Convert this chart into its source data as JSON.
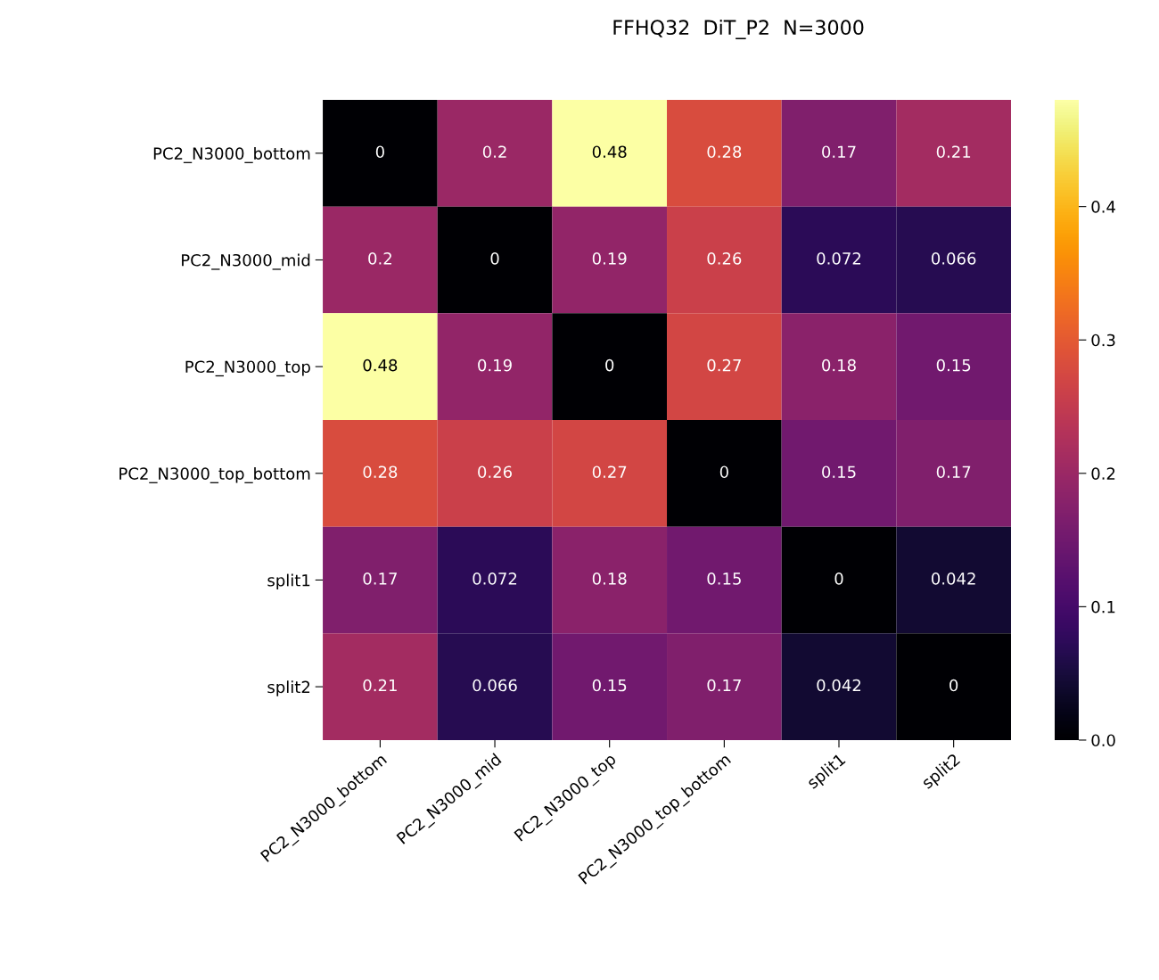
{
  "chart_data": {
    "type": "heatmap",
    "title": "FFHQ32  DiT_P2  N=3000",
    "categories": [
      "PC2_N3000_bottom",
      "PC2_N3000_mid",
      "PC2_N3000_top",
      "PC2_N3000_top_bottom",
      "split1",
      "split2"
    ],
    "y_categories": [
      "PC2_N3000_bottom",
      "PC2_N3000_mid",
      "PC2_N3000_top",
      "PC2_N3000_top_bottom",
      "split1",
      "split2"
    ],
    "cells": [
      [
        0,
        0.2,
        0.48,
        0.28,
        0.17,
        0.21
      ],
      [
        0.2,
        0,
        0.19,
        0.26,
        0.072,
        0.066
      ],
      [
        0.48,
        0.19,
        0,
        0.27,
        0.18,
        0.15
      ],
      [
        0.28,
        0.26,
        0.27,
        0,
        0.15,
        0.17
      ],
      [
        0.17,
        0.072,
        0.18,
        0.15,
        0,
        0.042
      ],
      [
        0.21,
        0.066,
        0.15,
        0.17,
        0.042,
        0
      ]
    ],
    "clim": [
      0,
      0.48
    ],
    "cticks": [
      {
        "value": 0,
        "label": "0.0"
      },
      0.1,
      0.2,
      0.3,
      0.4
    ],
    "data_labels": true
  }
}
